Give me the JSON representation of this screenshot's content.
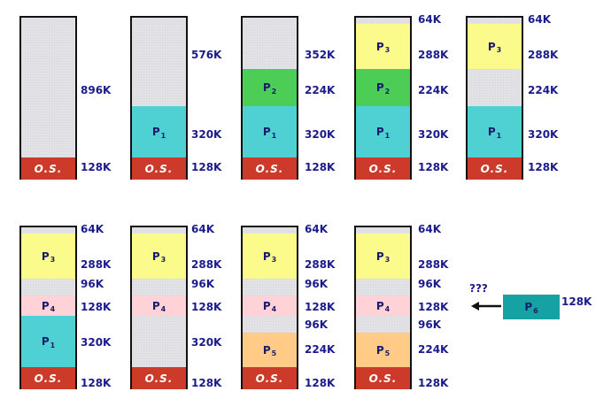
{
  "colors": {
    "os": "#cc3a2a",
    "free": "#e2e2e6",
    "p1": "#4fd1d4",
    "p2": "#4cce56",
    "p3": "#fbfb8c",
    "p4": "#ffd2d8",
    "p5": "#ffcb86",
    "p6": "#16a2a2",
    "label_text": "#1b1b8b"
  },
  "columns": [
    {
      "segments": [
        {
          "kind": "free"
        },
        {
          "kind": "os",
          "text": "O.S."
        }
      ],
      "size_labels": [
        "896K",
        "128K"
      ]
    },
    {
      "segments": [
        {
          "kind": "free"
        },
        {
          "kind": "proc",
          "name": "P",
          "sub": "1"
        },
        {
          "kind": "os",
          "text": "O.S."
        }
      ],
      "size_labels": [
        "576K",
        "320K",
        "128K"
      ]
    },
    {
      "segments": [
        {
          "kind": "free"
        },
        {
          "kind": "proc",
          "name": "P",
          "sub": "2"
        },
        {
          "kind": "proc",
          "name": "P",
          "sub": "1"
        },
        {
          "kind": "os",
          "text": "O.S."
        }
      ],
      "size_labels": [
        "352K",
        "224K",
        "320K",
        "128K"
      ]
    },
    {
      "segments": [
        {
          "kind": "free"
        },
        {
          "kind": "proc",
          "name": "P",
          "sub": "3"
        },
        {
          "kind": "proc",
          "name": "P",
          "sub": "2"
        },
        {
          "kind": "proc",
          "name": "P",
          "sub": "1"
        },
        {
          "kind": "os",
          "text": "O.S."
        }
      ],
      "size_labels": [
        "64K",
        "288K",
        "224K",
        "320K",
        "128K"
      ]
    },
    {
      "segments": [
        {
          "kind": "free"
        },
        {
          "kind": "proc",
          "name": "P",
          "sub": "3"
        },
        {
          "kind": "free"
        },
        {
          "kind": "proc",
          "name": "P",
          "sub": "1"
        },
        {
          "kind": "os",
          "text": "O.S."
        }
      ],
      "size_labels": [
        "64K",
        "288K",
        "224K",
        "320K",
        "128K"
      ]
    },
    {
      "segments": [
        {
          "kind": "free"
        },
        {
          "kind": "proc",
          "name": "P",
          "sub": "3"
        },
        {
          "kind": "free"
        },
        {
          "kind": "proc",
          "name": "P",
          "sub": "4"
        },
        {
          "kind": "proc",
          "name": "P",
          "sub": "1"
        },
        {
          "kind": "os",
          "text": "O.S."
        }
      ],
      "size_labels": [
        "64K",
        "288K",
        "96K",
        "128K",
        "320K",
        "128K"
      ]
    },
    {
      "segments": [
        {
          "kind": "free"
        },
        {
          "kind": "proc",
          "name": "P",
          "sub": "3"
        },
        {
          "kind": "free"
        },
        {
          "kind": "proc",
          "name": "P",
          "sub": "4"
        },
        {
          "kind": "free"
        },
        {
          "kind": "os",
          "text": "O.S."
        }
      ],
      "size_labels": [
        "64K",
        "288K",
        "96K",
        "128K",
        "320K",
        "128K"
      ]
    },
    {
      "segments": [
        {
          "kind": "free"
        },
        {
          "kind": "proc",
          "name": "P",
          "sub": "3"
        },
        {
          "kind": "free"
        },
        {
          "kind": "proc",
          "name": "P",
          "sub": "4"
        },
        {
          "kind": "free"
        },
        {
          "kind": "proc",
          "name": "P",
          "sub": "5"
        },
        {
          "kind": "os",
          "text": "O.S."
        }
      ],
      "size_labels": [
        "64K",
        "288K",
        "96K",
        "128K",
        "96K",
        "224K",
        "128K"
      ]
    },
    {
      "segments": [
        {
          "kind": "free"
        },
        {
          "kind": "proc",
          "name": "P",
          "sub": "3"
        },
        {
          "kind": "free"
        },
        {
          "kind": "proc",
          "name": "P",
          "sub": "4"
        },
        {
          "kind": "free"
        },
        {
          "kind": "proc",
          "name": "P",
          "sub": "5"
        },
        {
          "kind": "os",
          "text": "O.S."
        }
      ],
      "size_labels": [
        "64K",
        "288K",
        "96K",
        "128K",
        "96K",
        "224K",
        "128K"
      ]
    }
  ],
  "incoming": {
    "question": "???",
    "process_name": "P",
    "process_sub": "6",
    "size_label": "128K"
  }
}
